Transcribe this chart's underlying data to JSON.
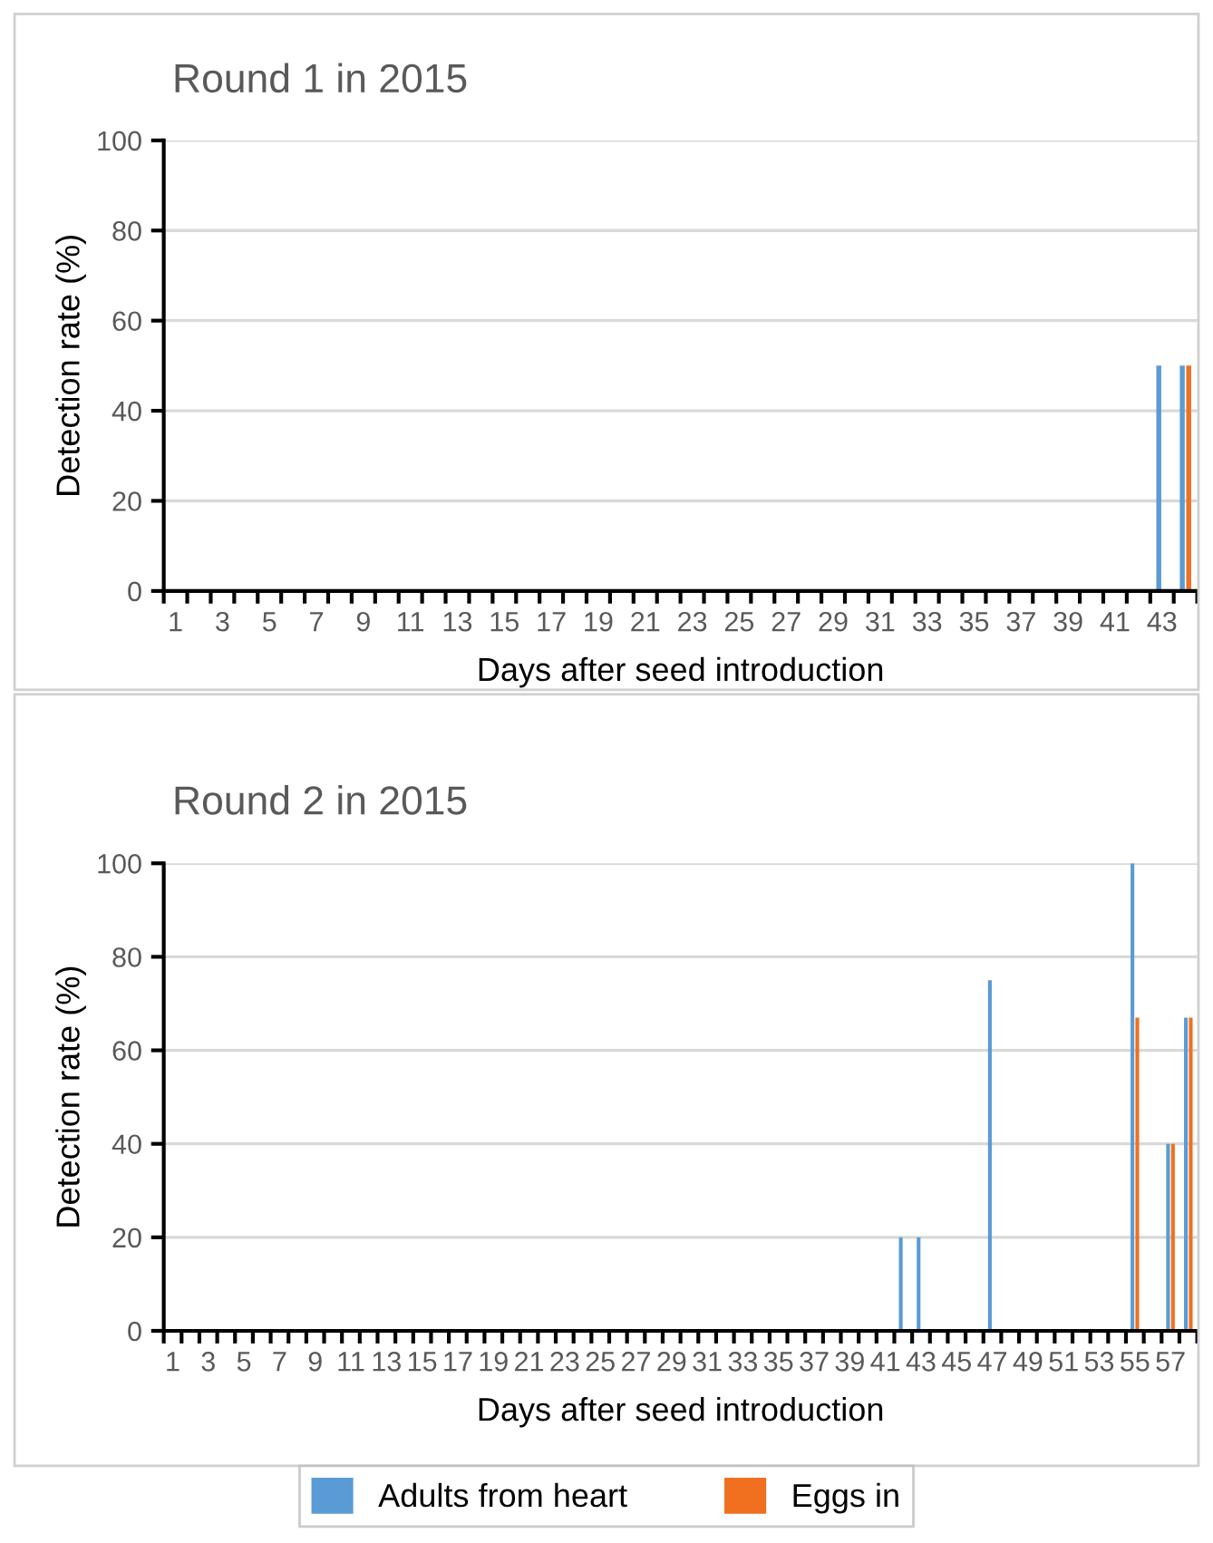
{
  "chart_data": [
    {
      "type": "bar",
      "title": "Round 1 in 2015",
      "xlabel": "Days after seed introduction",
      "ylabel": "Detection rate (%)",
      "categories": [
        "1",
        null,
        "3",
        null,
        "5",
        null,
        "7",
        null,
        "9",
        null,
        "11",
        null,
        "13",
        null,
        "15",
        null,
        "17",
        null,
        "19",
        null,
        "21",
        null,
        "23",
        null,
        "25",
        null,
        "27",
        null,
        "29",
        null,
        "31",
        null,
        "33",
        null,
        "35",
        null,
        "37",
        null,
        "39",
        null,
        "41",
        null,
        "43",
        null
      ],
      "series": [
        {
          "color": "#5b9bd5",
          "values": [
            0,
            0,
            0,
            0,
            0,
            0,
            0,
            0,
            0,
            0,
            0,
            0,
            0,
            0,
            0,
            0,
            0,
            0,
            0,
            0,
            0,
            0,
            0,
            0,
            0,
            0,
            0,
            0,
            0,
            0,
            0,
            0,
            0,
            0,
            0,
            0,
            0,
            0,
            0,
            0,
            0,
            0,
            50,
            50
          ]
        },
        {
          "color": "#f07020",
          "values": [
            0,
            0,
            0,
            0,
            0,
            0,
            0,
            0,
            0,
            0,
            0,
            0,
            0,
            0,
            0,
            0,
            0,
            0,
            0,
            0,
            0,
            0,
            0,
            0,
            0,
            0,
            0,
            0,
            0,
            0,
            0,
            0,
            0,
            0,
            0,
            0,
            0,
            0,
            0,
            0,
            0,
            0,
            0,
            50
          ]
        }
      ],
      "ylim": [
        0,
        100
      ],
      "yticks": [
        0,
        20,
        40,
        60,
        80,
        100
      ],
      "grid": "y",
      "legend": false
    },
    {
      "type": "bar",
      "title": "Round 2 in 2015",
      "xlabel": "Days after seed introduction",
      "ylabel": "Detection rate (%)",
      "categories": [
        "1",
        null,
        "3",
        null,
        "5",
        null,
        "7",
        null,
        "9",
        null,
        "11",
        null,
        "13",
        null,
        "15",
        null,
        "17",
        null,
        "19",
        null,
        "21",
        null,
        "23",
        null,
        "25",
        null,
        "27",
        null,
        "29",
        null,
        "31",
        null,
        "33",
        null,
        "35",
        null,
        "37",
        null,
        "39",
        null,
        "41",
        null,
        "43",
        null,
        "45",
        null,
        "47",
        null,
        "49",
        null,
        "51",
        null,
        "53",
        null,
        "55",
        null,
        "57",
        null
      ],
      "series": [
        {
          "name": "Adults from heart",
          "color": "#5b9bd5",
          "values": [
            0,
            0,
            0,
            0,
            0,
            0,
            0,
            0,
            0,
            0,
            0,
            0,
            0,
            0,
            0,
            0,
            0,
            0,
            0,
            0,
            0,
            0,
            0,
            0,
            0,
            0,
            0,
            0,
            0,
            0,
            0,
            0,
            0,
            0,
            0,
            0,
            0,
            0,
            0,
            0,
            0,
            20,
            20,
            0,
            0,
            0,
            75,
            0,
            0,
            0,
            0,
            0,
            0,
            0,
            100,
            0,
            40,
            67
          ]
        },
        {
          "name": "Eggs in",
          "color": "#f07020",
          "values": [
            0,
            0,
            0,
            0,
            0,
            0,
            0,
            0,
            0,
            0,
            0,
            0,
            0,
            0,
            0,
            0,
            0,
            0,
            0,
            0,
            0,
            0,
            0,
            0,
            0,
            0,
            0,
            0,
            0,
            0,
            0,
            0,
            0,
            0,
            0,
            0,
            0,
            0,
            0,
            0,
            0,
            0,
            0,
            0,
            0,
            0,
            0,
            0,
            0,
            0,
            0,
            0,
            0,
            0,
            67,
            0,
            40,
            67
          ]
        }
      ],
      "ylim": [
        0,
        100
      ],
      "yticks": [
        0,
        20,
        40,
        60,
        80,
        100
      ],
      "grid": "y",
      "legend": "bottom"
    }
  ]
}
